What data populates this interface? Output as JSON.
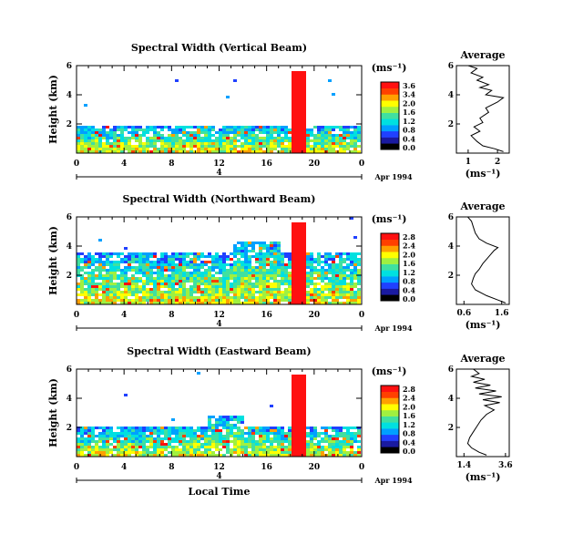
{
  "chart_data": [
    {
      "type": "heatmap",
      "title": "Spectral Width (Vertical Beam)",
      "ylabel": "Height (km)",
      "x_ticks": [
        "0",
        "4",
        "8",
        "12",
        "16",
        "20",
        "0"
      ],
      "xlim": [
        0,
        24
      ],
      "y_ticks": [
        "6",
        "4",
        "2"
      ],
      "ylim": [
        0,
        6
      ],
      "date_tick": "4",
      "date_label": "Apr 1994",
      "colorbar": {
        "unit": "(ms⁻¹)",
        "ticks": [
          "3.6",
          "3.4",
          "2.0",
          "1.6",
          "1.2",
          "0.8",
          "0.4",
          "0.0"
        ],
        "colors": [
          "#000000",
          "#1a1aa0",
          "#2040ff",
          "#00a0ff",
          "#00e0e0",
          "#40e0a0",
          "#a0f040",
          "#ffff00",
          "#ffa000",
          "#ff4000",
          "#ff1010"
        ]
      },
      "profile": {
        "title": "Average",
        "xlabel": "(ms⁻¹)",
        "x_ticks": [
          "1",
          "2"
        ],
        "xlim": [
          0.6,
          2.4
        ],
        "y_ticks": [
          "6",
          "4",
          "2"
        ],
        "ylim": [
          0,
          6
        ],
        "points": [
          [
            2.2,
            0.1
          ],
          [
            1.9,
            0.3
          ],
          [
            1.5,
            0.5
          ],
          [
            1.3,
            0.8
          ],
          [
            1.1,
            1.2
          ],
          [
            1.4,
            1.5
          ],
          [
            1.2,
            1.8
          ],
          [
            1.5,
            2.1
          ],
          [
            1.4,
            2.4
          ],
          [
            1.7,
            2.8
          ],
          [
            1.6,
            3.1
          ],
          [
            2.0,
            3.5
          ],
          [
            2.2,
            3.8
          ],
          [
            1.6,
            4.0
          ],
          [
            1.8,
            4.3
          ],
          [
            1.4,
            4.5
          ],
          [
            1.7,
            4.7
          ],
          [
            1.3,
            5.0
          ],
          [
            1.5,
            5.2
          ],
          [
            1.1,
            5.5
          ],
          [
            1.3,
            5.8
          ],
          [
            1.0,
            6.0
          ]
        ]
      }
    },
    {
      "type": "heatmap",
      "title": "Spectral Width (Northward Beam)",
      "ylabel": "Height (km)",
      "x_ticks": [
        "0",
        "4",
        "8",
        "12",
        "16",
        "20",
        "0"
      ],
      "xlim": [
        0,
        24
      ],
      "y_ticks": [
        "6",
        "4",
        "2"
      ],
      "ylim": [
        0,
        6
      ],
      "date_tick": "4",
      "date_label": "Apr 1994",
      "colorbar": {
        "unit": "(ms⁻¹)",
        "ticks": [
          "2.8",
          "2.4",
          "2.0",
          "1.6",
          "1.2",
          "0.8",
          "0.4",
          "0.0"
        ],
        "colors": [
          "#000000",
          "#1a1aa0",
          "#2040ff",
          "#00a0ff",
          "#00e0e0",
          "#40e0a0",
          "#a0f040",
          "#ffff00",
          "#ffa000",
          "#ff4000",
          "#ff1010"
        ]
      },
      "profile": {
        "title": "Average",
        "xlabel": "(ms⁻¹)",
        "x_ticks": [
          "0.6",
          "1.6"
        ],
        "xlim": [
          0.4,
          1.8
        ],
        "y_ticks": [
          "6",
          "4",
          "2"
        ],
        "ylim": [
          0,
          6
        ],
        "points": [
          [
            1.7,
            0.1
          ],
          [
            1.5,
            0.3
          ],
          [
            1.2,
            0.6
          ],
          [
            0.9,
            1.0
          ],
          [
            0.8,
            1.4
          ],
          [
            0.85,
            1.8
          ],
          [
            0.9,
            2.1
          ],
          [
            1.0,
            2.4
          ],
          [
            1.1,
            2.8
          ],
          [
            1.2,
            3.1
          ],
          [
            1.3,
            3.4
          ],
          [
            1.4,
            3.7
          ],
          [
            1.5,
            3.9
          ],
          [
            1.2,
            4.2
          ],
          [
            1.0,
            4.5
          ],
          [
            0.9,
            4.9
          ],
          [
            0.85,
            5.3
          ],
          [
            0.8,
            5.7
          ],
          [
            0.7,
            6.0
          ]
        ]
      }
    },
    {
      "type": "heatmap",
      "title": "Spectral Width (Eastward Beam)",
      "ylabel": "Height (km)",
      "x_ticks": [
        "0",
        "4",
        "8",
        "12",
        "16",
        "20",
        "0"
      ],
      "xlim": [
        0,
        24
      ],
      "y_ticks": [
        "6",
        "4",
        "2"
      ],
      "ylim": [
        0,
        6
      ],
      "date_tick": "4",
      "date_label": "Apr 1994",
      "xlabel": "Local Time",
      "colorbar": {
        "unit": "(ms⁻¹)",
        "ticks": [
          "2.8",
          "2.4",
          "2.0",
          "1.6",
          "1.2",
          "0.8",
          "0.4",
          "0.0"
        ],
        "colors": [
          "#000000",
          "#1a1aa0",
          "#2040ff",
          "#00a0ff",
          "#00e0e0",
          "#40e0a0",
          "#a0f040",
          "#ffff00",
          "#ffa000",
          "#ff4000",
          "#ff1010"
        ]
      },
      "profile": {
        "title": "Average",
        "xlabel": "(ms⁻¹)",
        "x_ticks": [
          "1.4",
          "3.6"
        ],
        "xlim": [
          1.0,
          3.8
        ],
        "y_ticks": [
          "6",
          "4",
          "2"
        ],
        "ylim": [
          0,
          6
        ],
        "points": [
          [
            2.6,
            0.1
          ],
          [
            2.2,
            0.3
          ],
          [
            1.8,
            0.6
          ],
          [
            1.6,
            0.9
          ],
          [
            1.7,
            1.3
          ],
          [
            1.9,
            1.7
          ],
          [
            2.1,
            2.1
          ],
          [
            2.3,
            2.5
          ],
          [
            2.6,
            2.9
          ],
          [
            3.0,
            3.2
          ],
          [
            2.5,
            3.5
          ],
          [
            3.3,
            3.7
          ],
          [
            2.4,
            3.9
          ],
          [
            3.4,
            4.1
          ],
          [
            2.2,
            4.3
          ],
          [
            3.1,
            4.5
          ],
          [
            2.0,
            4.7
          ],
          [
            2.8,
            4.9
          ],
          [
            1.9,
            5.1
          ],
          [
            2.5,
            5.3
          ],
          [
            1.8,
            5.5
          ],
          [
            2.2,
            5.7
          ],
          [
            1.9,
            6.0
          ]
        ]
      }
    }
  ]
}
